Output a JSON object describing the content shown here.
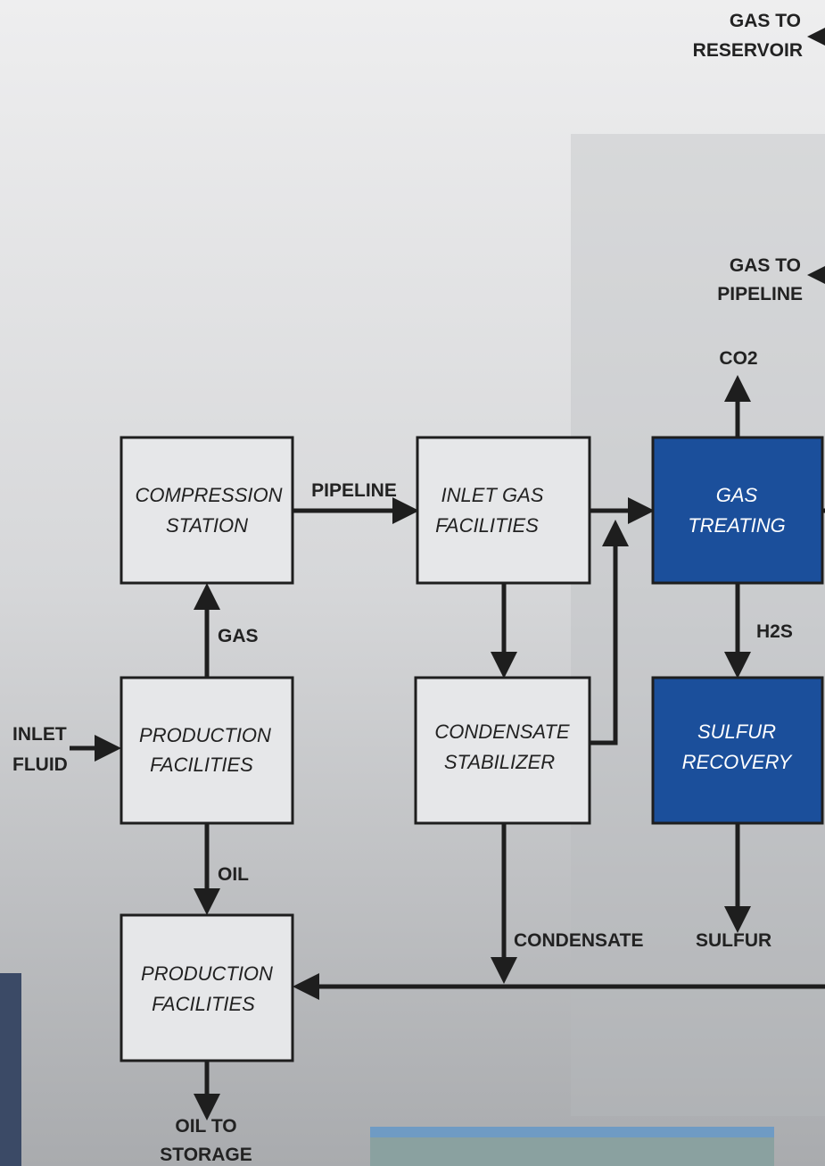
{
  "nodes": [
    {
      "label": [
        "COMPRESSION",
        "STATION"
      ]
    },
    {
      "label": [
        "INLET GAS",
        "FACILITIES"
      ]
    },
    {
      "label": [
        "GAS",
        "TREATING"
      ]
    },
    {
      "label": [
        "PRODUCTION",
        "FACILITIES"
      ]
    },
    {
      "label": [
        "CONDENSATE",
        "STABILIZER"
      ]
    },
    {
      "label": [
        "SULFUR",
        "RECOVERY"
      ]
    },
    {
      "label": [
        "PRODUCTION",
        "FACILITIES"
      ]
    }
  ],
  "flows": {
    "gas_to_reservoir": [
      "GAS TO",
      "RESERVOIR"
    ],
    "gas_to_pipeline": [
      "GAS TO",
      "PIPELINE"
    ],
    "co2": "CO2",
    "pipeline": "PIPELINE",
    "gas": "GAS",
    "h2s": "H2S",
    "inlet_fluid": [
      "INLET",
      "FLUID"
    ],
    "oil": "OIL",
    "condensate": "CONDENSATE",
    "sulfur": "SULFUR",
    "oil_to_storage": [
      "OIL TO",
      "STORAGE"
    ]
  }
}
